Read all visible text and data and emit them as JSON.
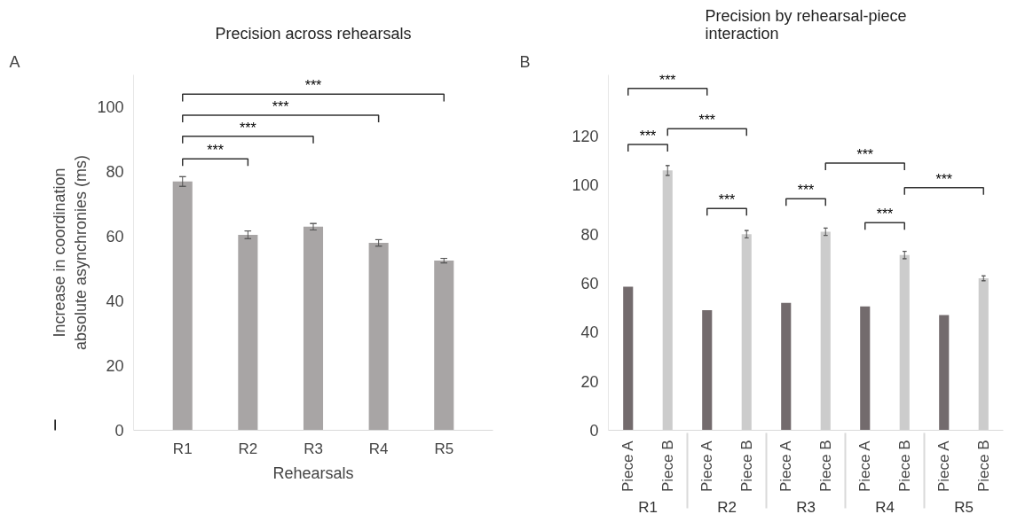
{
  "chart_data": [
    {
      "type": "bar",
      "title": "Precision across rehearsals",
      "xlabel": "Rehearsals",
      "ylabel": "Increase in coordination\nabsolute asynchronies (ms)",
      "categories": [
        "R1",
        "R2",
        "R3",
        "R4",
        "R5"
      ],
      "values": [
        77,
        60.5,
        63,
        58,
        52.5
      ],
      "errors": [
        1.5,
        1.2,
        1,
        1,
        0.7
      ],
      "color": "#a8a5a5",
      "ylim": [
        0,
        110
      ],
      "yticks": [
        0,
        20,
        40,
        60,
        80,
        100
      ],
      "grid": false,
      "annotations": [
        "A",
        "***",
        "***",
        "***",
        "***"
      ]
    },
    {
      "type": "bar",
      "title": "Precision by rehearsal-piece interaction",
      "categories": [
        "R1",
        "R2",
        "R3",
        "R4",
        "R5"
      ],
      "series": [
        {
          "name": "Piece A",
          "color": "#736b6d",
          "values": [
            58.6,
            49,
            52,
            50.5,
            47
          ]
        },
        {
          "name": "Piece B",
          "color": "#cccccc",
          "values": [
            106,
            80,
            81,
            71.5,
            62
          ],
          "errors": [
            2,
            1.5,
            1.5,
            1.5,
            1
          ]
        }
      ],
      "ylim": [
        0,
        145
      ],
      "yticks": [
        0,
        20,
        40,
        60,
        80,
        100,
        120
      ],
      "grid": false,
      "annotations": [
        "B",
        "***",
        "***",
        "***",
        "***",
        "***",
        "***",
        "***",
        "***"
      ]
    }
  ]
}
